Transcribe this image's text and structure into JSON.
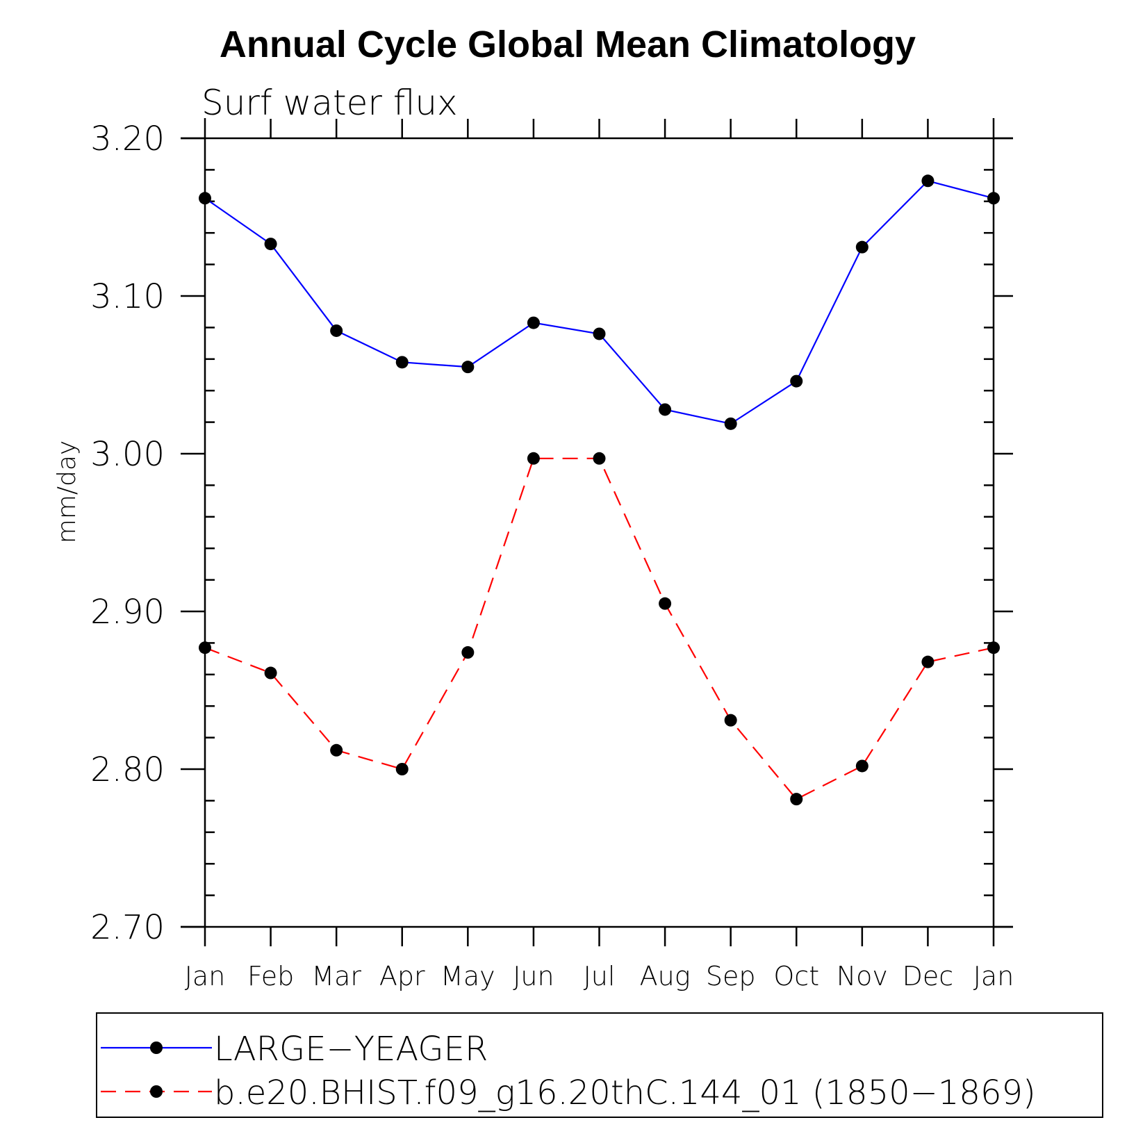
{
  "chart_data": {
    "type": "line",
    "title": "Annual Cycle Global Mean Climatology",
    "subtitle": "Surf water flux",
    "xlabel": "",
    "ylabel": "mm/day",
    "categories": [
      "Jan",
      "Feb",
      "Mar",
      "Apr",
      "May",
      "Jun",
      "Jul",
      "Aug",
      "Sep",
      "Oct",
      "Nov",
      "Dec",
      "Jan"
    ],
    "ylim": [
      2.7,
      3.2
    ],
    "yticks": [
      "2.70",
      "2.80",
      "2.90",
      "3.00",
      "3.10",
      "3.20"
    ],
    "grid": false,
    "legend_position": "bottom",
    "series": [
      {
        "name": "LARGE−YEAGER",
        "color": "#0000ff",
        "line_style": "solid",
        "marker": "filled-circle",
        "values": [
          3.162,
          3.133,
          3.078,
          3.058,
          3.055,
          3.083,
          3.076,
          3.028,
          3.019,
          3.046,
          3.131,
          3.173,
          3.162
        ]
      },
      {
        "name": "b.e20.BHIST.f09_g16.20thC.144_01 (1850−1869)",
        "color": "#ff0000",
        "line_style": "dashed",
        "marker": "filled-circle",
        "values": [
          2.877,
          2.861,
          2.812,
          2.8,
          2.874,
          2.997,
          2.997,
          2.905,
          2.831,
          2.781,
          2.802,
          2.868,
          2.877
        ]
      }
    ]
  }
}
